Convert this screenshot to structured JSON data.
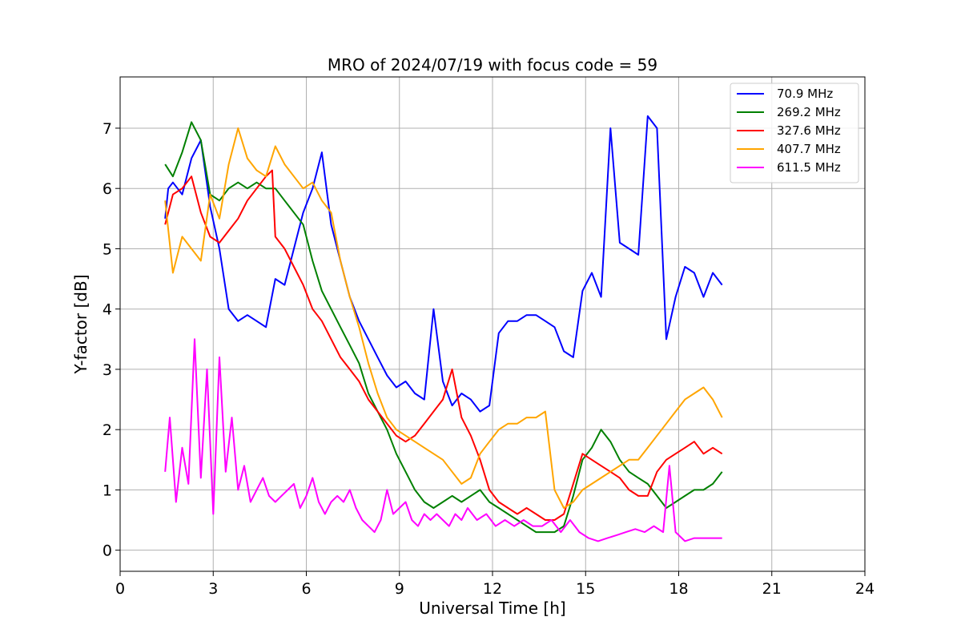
{
  "chart_data": {
    "type": "line",
    "title": "MRO of 2024/07/19 with focus code = 59",
    "xlabel": "Universal Time [h]",
    "ylabel": "Y-factor [dB]",
    "xlim": [
      0,
      24
    ],
    "ylim": [
      -0.35,
      7.85
    ],
    "xticks": [
      0,
      3,
      6,
      9,
      12,
      15,
      18,
      21,
      24
    ],
    "xtick_labels": [
      "0",
      "3",
      "6",
      "9",
      "12",
      "15",
      "18",
      "21",
      "24"
    ],
    "yticks": [
      0,
      1,
      2,
      3,
      4,
      5,
      6,
      7
    ],
    "ytick_labels": [
      "0",
      "1",
      "2",
      "3",
      "4",
      "5",
      "6",
      "7"
    ],
    "grid": true,
    "legend_position": "top-right",
    "series": [
      {
        "name": " 70.9 MHz",
        "color": "#0000ff",
        "x": [
          1.45,
          1.55,
          1.7,
          2.0,
          2.3,
          2.6,
          2.9,
          3.2,
          3.5,
          3.8,
          4.1,
          4.4,
          4.7,
          5.0,
          5.3,
          5.6,
          5.9,
          6.2,
          6.5,
          6.8,
          7.1,
          7.4,
          7.7,
          8.0,
          8.3,
          8.6,
          8.9,
          9.2,
          9.5,
          9.8,
          10.1,
          10.4,
          10.7,
          11.0,
          11.3,
          11.6,
          11.9,
          12.2,
          12.5,
          12.8,
          13.1,
          13.4,
          13.7,
          14.0,
          14.3,
          14.6,
          14.9,
          15.2,
          15.5,
          15.8,
          16.1,
          16.4,
          16.7,
          17.0,
          17.3,
          17.6,
          17.9,
          18.2,
          18.5,
          18.8,
          19.1,
          19.4
        ],
        "y": [
          5.5,
          6.0,
          6.1,
          5.9,
          6.5,
          6.8,
          5.7,
          5.0,
          4.0,
          3.8,
          3.9,
          3.8,
          3.7,
          4.5,
          4.4,
          5.0,
          5.6,
          6.0,
          6.6,
          5.4,
          4.8,
          4.2,
          3.8,
          3.5,
          3.2,
          2.9,
          2.7,
          2.8,
          2.6,
          2.5,
          4.0,
          2.8,
          2.4,
          2.6,
          2.5,
          2.3,
          2.4,
          3.6,
          3.8,
          3.8,
          3.9,
          3.9,
          3.8,
          3.7,
          3.3,
          3.2,
          4.3,
          4.6,
          4.2,
          7.0,
          5.1,
          5.0,
          4.9,
          7.2,
          7.0,
          3.5,
          4.2,
          4.7,
          4.6,
          4.2,
          4.6,
          4.4
        ]
      },
      {
        "name": "269.2 MHz",
        "color": "#008000",
        "x": [
          1.45,
          1.7,
          2.0,
          2.3,
          2.6,
          2.9,
          3.2,
          3.5,
          3.8,
          4.1,
          4.4,
          4.7,
          5.0,
          5.3,
          5.6,
          5.9,
          6.2,
          6.5,
          6.8,
          7.1,
          7.4,
          7.7,
          8.0,
          8.3,
          8.6,
          8.9,
          9.2,
          9.5,
          9.8,
          10.1,
          10.4,
          10.7,
          11.0,
          11.3,
          11.6,
          11.9,
          12.2,
          12.5,
          12.8,
          13.1,
          13.4,
          13.7,
          14.0,
          14.3,
          14.6,
          14.9,
          15.2,
          15.5,
          15.8,
          16.1,
          16.4,
          16.7,
          17.0,
          17.3,
          17.6,
          17.9,
          18.2,
          18.5,
          18.8,
          19.1,
          19.4
        ],
        "y": [
          6.4,
          6.2,
          6.6,
          7.1,
          6.8,
          5.9,
          5.8,
          6.0,
          6.1,
          6.0,
          6.1,
          6.0,
          6.0,
          5.8,
          5.6,
          5.4,
          4.8,
          4.3,
          4.0,
          3.7,
          3.4,
          3.1,
          2.6,
          2.3,
          2.0,
          1.6,
          1.3,
          1.0,
          0.8,
          0.7,
          0.8,
          0.9,
          0.8,
          0.9,
          1.0,
          0.8,
          0.7,
          0.6,
          0.5,
          0.4,
          0.3,
          0.3,
          0.3,
          0.4,
          0.9,
          1.5,
          1.7,
          2.0,
          1.8,
          1.5,
          1.3,
          1.2,
          1.1,
          0.9,
          0.7,
          0.8,
          0.9,
          1.0,
          1.0,
          1.1,
          1.3
        ]
      },
      {
        "name": "327.6 MHz",
        "color": "#ff0000",
        "x": [
          1.45,
          1.7,
          2.0,
          2.3,
          2.6,
          2.9,
          3.2,
          3.5,
          3.8,
          4.1,
          4.4,
          4.7,
          4.9,
          5.0,
          5.3,
          5.6,
          5.9,
          6.2,
          6.5,
          6.8,
          7.1,
          7.4,
          7.7,
          8.0,
          8.3,
          8.6,
          8.9,
          9.2,
          9.5,
          9.8,
          10.1,
          10.4,
          10.7,
          11.0,
          11.3,
          11.6,
          11.9,
          12.2,
          12.5,
          12.8,
          13.1,
          13.4,
          13.7,
          14.0,
          14.3,
          14.6,
          14.9,
          15.2,
          15.5,
          15.8,
          16.1,
          16.4,
          16.7,
          17.0,
          17.3,
          17.6,
          17.9,
          18.2,
          18.5,
          18.8,
          19.1,
          19.4
        ],
        "y": [
          5.4,
          5.9,
          6.0,
          6.2,
          5.6,
          5.2,
          5.1,
          5.3,
          5.5,
          5.8,
          6.0,
          6.2,
          6.3,
          5.2,
          5.0,
          4.7,
          4.4,
          4.0,
          3.8,
          3.5,
          3.2,
          3.0,
          2.8,
          2.5,
          2.3,
          2.1,
          1.9,
          1.8,
          1.9,
          2.1,
          2.3,
          2.5,
          3.0,
          2.2,
          1.9,
          1.5,
          1.0,
          0.8,
          0.7,
          0.6,
          0.7,
          0.6,
          0.5,
          0.5,
          0.6,
          1.1,
          1.6,
          1.5,
          1.4,
          1.3,
          1.2,
          1.0,
          0.9,
          0.9,
          1.3,
          1.5,
          1.6,
          1.7,
          1.8,
          1.6,
          1.7,
          1.6
        ]
      },
      {
        "name": "407.7 MHz",
        "color": "#ffa500",
        "x": [
          1.45,
          1.7,
          2.0,
          2.3,
          2.6,
          2.9,
          3.2,
          3.5,
          3.8,
          4.1,
          4.4,
          4.7,
          5.0,
          5.3,
          5.6,
          5.9,
          6.2,
          6.5,
          6.8,
          7.1,
          7.4,
          7.7,
          8.0,
          8.3,
          8.6,
          8.9,
          9.2,
          9.5,
          9.8,
          10.1,
          10.4,
          10.7,
          11.0,
          11.3,
          11.6,
          11.9,
          12.2,
          12.5,
          12.8,
          13.1,
          13.4,
          13.7,
          14.0,
          14.3,
          14.6,
          14.9,
          15.2,
          15.5,
          15.8,
          16.1,
          16.4,
          16.7,
          17.0,
          17.3,
          17.6,
          17.9,
          18.2,
          18.5,
          18.8,
          19.1,
          19.4
        ],
        "y": [
          5.8,
          4.6,
          5.2,
          5.0,
          4.8,
          5.9,
          5.5,
          6.4,
          7.0,
          6.5,
          6.3,
          6.2,
          6.7,
          6.4,
          6.2,
          6.0,
          6.1,
          5.8,
          5.6,
          4.8,
          4.2,
          3.7,
          3.1,
          2.6,
          2.2,
          2.0,
          1.9,
          1.8,
          1.7,
          1.6,
          1.5,
          1.3,
          1.1,
          1.2,
          1.6,
          1.8,
          2.0,
          2.1,
          2.1,
          2.2,
          2.2,
          2.3,
          1.0,
          0.7,
          0.8,
          1.0,
          1.1,
          1.2,
          1.3,
          1.4,
          1.5,
          1.5,
          1.7,
          1.9,
          2.1,
          2.3,
          2.5,
          2.6,
          2.7,
          2.5,
          2.2
        ]
      },
      {
        "name": "611.5 MHz",
        "color": "#ff00ff",
        "x": [
          1.45,
          1.6,
          1.8,
          2.0,
          2.2,
          2.4,
          2.6,
          2.8,
          3.0,
          3.2,
          3.4,
          3.6,
          3.8,
          4.0,
          4.2,
          4.4,
          4.6,
          4.8,
          5.0,
          5.2,
          5.4,
          5.6,
          5.8,
          6.0,
          6.2,
          6.4,
          6.6,
          6.8,
          7.0,
          7.2,
          7.4,
          7.6,
          7.8,
          8.0,
          8.2,
          8.4,
          8.6,
          8.8,
          9.0,
          9.2,
          9.4,
          9.6,
          9.8,
          10.0,
          10.2,
          10.4,
          10.6,
          10.8,
          11.0,
          11.2,
          11.5,
          11.8,
          12.1,
          12.4,
          12.7,
          13.0,
          13.3,
          13.6,
          13.9,
          14.2,
          14.5,
          14.8,
          15.1,
          15.4,
          15.7,
          16.0,
          16.3,
          16.6,
          16.9,
          17.2,
          17.5,
          17.7,
          17.9,
          18.2,
          18.5,
          18.8,
          19.1,
          19.4
        ],
        "y": [
          1.3,
          2.2,
          0.8,
          1.7,
          1.1,
          3.5,
          1.2,
          3.0,
          0.6,
          3.2,
          1.3,
          2.2,
          1.0,
          1.4,
          0.8,
          1.0,
          1.2,
          0.9,
          0.8,
          0.9,
          1.0,
          1.1,
          0.7,
          0.9,
          1.2,
          0.8,
          0.6,
          0.8,
          0.9,
          0.8,
          1.0,
          0.7,
          0.5,
          0.4,
          0.3,
          0.5,
          1.0,
          0.6,
          0.7,
          0.8,
          0.5,
          0.4,
          0.6,
          0.5,
          0.6,
          0.5,
          0.4,
          0.6,
          0.5,
          0.7,
          0.5,
          0.6,
          0.4,
          0.5,
          0.4,
          0.5,
          0.4,
          0.4,
          0.5,
          0.3,
          0.5,
          0.3,
          0.2,
          0.15,
          0.2,
          0.25,
          0.3,
          0.35,
          0.3,
          0.4,
          0.3,
          1.4,
          0.3,
          0.15,
          0.2,
          0.2,
          0.2,
          0.2
        ]
      }
    ]
  }
}
